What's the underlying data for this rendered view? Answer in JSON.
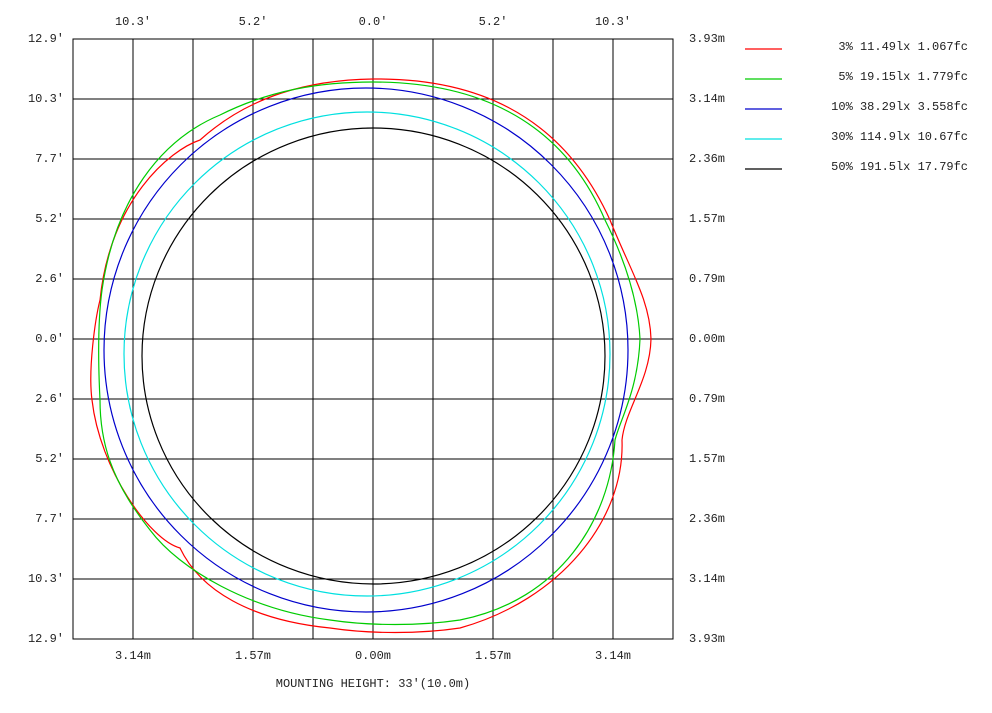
{
  "top_axis": {
    "labels": [
      "10.3'",
      "5.2'",
      "0.0'",
      "5.2'",
      "10.3'"
    ]
  },
  "left_axis": {
    "labels": [
      "12.9'",
      "10.3'",
      "7.7'",
      "5.2'",
      "2.6'",
      "0.0'",
      "2.6'",
      "5.2'",
      "7.7'",
      "10.3'",
      "12.9'"
    ]
  },
  "right_axis": {
    "labels": [
      "3.93m",
      "3.14m",
      "2.36m",
      "1.57m",
      "0.79m",
      "0.00m",
      "0.79m",
      "1.57m",
      "2.36m",
      "3.14m",
      "3.93m"
    ]
  },
  "bottom_axis": {
    "labels": [
      "3.14m",
      "1.57m",
      "0.00m",
      "1.57m",
      "3.14m"
    ]
  },
  "caption": "MOUNTING HEIGHT: 33'(10.0m)",
  "legend": [
    {
      "label": "3% 11.49lx 1.067fc",
      "color": "#ff0000"
    },
    {
      "label": "5% 19.15lx 1.779fc",
      "color": "#00cc00"
    },
    {
      "label": "10% 38.29lx 3.558fc",
      "color": "#0000cc"
    },
    {
      "label": "30% 114.9lx 10.67fc",
      "color": "#00e0e0"
    },
    {
      "label": "50% 191.5lx 17.79fc",
      "color": "#000000"
    }
  ]
}
